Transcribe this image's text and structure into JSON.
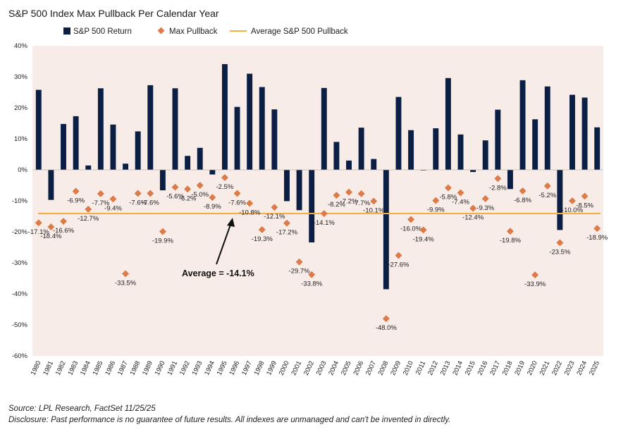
{
  "chart_data": {
    "type": "bar",
    "title": "S&P 500 Index Max Pullback Per Calendar Year",
    "categories": [
      "1980",
      "1981",
      "1982",
      "1983",
      "1984",
      "1985",
      "1986",
      "1987",
      "1988",
      "1989",
      "1990",
      "1991",
      "1992",
      "1993",
      "1994",
      "1995",
      "1996",
      "1997",
      "1998",
      "1999",
      "2000",
      "2001",
      "2002",
      "2003",
      "2004",
      "2005",
      "2006",
      "2007",
      "2008",
      "2009",
      "2010",
      "2011",
      "2012",
      "2013",
      "2014",
      "2015",
      "2016",
      "2017",
      "2018",
      "2019",
      "2020",
      "2021",
      "2022",
      "2023",
      "2024",
      "2025"
    ],
    "series": [
      {
        "name": "S&P 500 Return",
        "kind": "bar",
        "color": "#0b1f45",
        "values": [
          25.8,
          -9.7,
          14.8,
          17.3,
          1.4,
          26.3,
          14.6,
          2.0,
          12.4,
          27.3,
          -6.6,
          26.3,
          4.5,
          7.1,
          -1.5,
          34.1,
          20.3,
          31.0,
          26.7,
          19.5,
          -10.1,
          -13.0,
          -23.4,
          26.4,
          9.0,
          3.0,
          13.6,
          3.5,
          -38.5,
          23.5,
          12.8,
          -0.1,
          13.4,
          29.6,
          11.4,
          -0.7,
          9.5,
          19.4,
          -6.2,
          28.9,
          16.3,
          26.9,
          -19.4,
          24.2,
          23.3,
          13.7
        ]
      },
      {
        "name": "Max Pullback",
        "kind": "scatter",
        "color": "#e07b48",
        "values": [
          -17.1,
          -18.4,
          -16.6,
          -6.9,
          -12.7,
          -7.7,
          -9.4,
          -33.5,
          -7.6,
          -7.6,
          -19.9,
          -5.6,
          -6.2,
          -5.0,
          -8.9,
          -2.5,
          -7.6,
          -10.8,
          -19.3,
          -12.1,
          -17.2,
          -29.7,
          -33.8,
          -14.1,
          -8.2,
          -7.2,
          -7.7,
          -10.1,
          -48.0,
          -27.6,
          -16.0,
          -19.4,
          -9.9,
          -5.8,
          -7.4,
          -12.4,
          -9.3,
          -2.8,
          -19.8,
          -6.8,
          -33.9,
          -5.2,
          -23.5,
          -10.0,
          -8.5,
          -18.9
        ],
        "labels": [
          "-17.1%",
          "-18.4%",
          "-16.6%",
          "-6.9%",
          "-12.7%",
          "-7.7%",
          "-9.4%",
          "-33.5%",
          "-7.6%",
          "-7.6%",
          "-19.9%",
          "-5.6%",
          "-6.2%",
          "-5.0%",
          "-8.9%",
          "-2.5%",
          "-7.6%",
          "-10.8%",
          "-19.3%",
          "-12.1%",
          "-17.2%",
          "-29.7%",
          "-33.8%",
          "-14.1%",
          "-8.2%",
          "-7.2%",
          "-7.7%",
          "-10.1%",
          "-48.0%",
          "-27.6%",
          "-16.0%",
          "-19.4%",
          "-9.9%",
          "-5.8%",
          "-7.4%",
          "-12.4%",
          "-9.3%",
          "-2.8%",
          "-19.8%",
          "-6.8%",
          "-33.9%",
          "-5.2%",
          "-23.5%",
          "-10.0%",
          "-8.5%",
          "-18.9%"
        ]
      },
      {
        "name": "Average S&P 500 Pullback",
        "kind": "line",
        "color": "#f5b041",
        "value": -14.1
      }
    ],
    "yticks": [
      "40%",
      "30%",
      "20%",
      "10%",
      "0%",
      "-10%",
      "-20%",
      "-30%",
      "-40%",
      "-50%",
      "-60%"
    ],
    "ylim": [
      -60,
      40
    ],
    "annotation": "Average = -14.1%",
    "plot_background": "#f7ece8",
    "grid": false,
    "legend_position": "top-left"
  },
  "footer": {
    "source": "Source: LPL Research, FactSet 11/25/25",
    "disclosure": "Disclosure: Past performance is no guarantee of future results. All indexes are unmanaged and can't be invented in directly."
  }
}
